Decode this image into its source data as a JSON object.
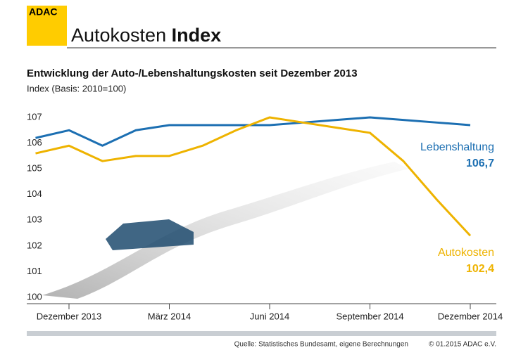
{
  "header": {
    "logo": "ADAC",
    "title": "Autokosten",
    "title_bold": "Index"
  },
  "chart_data": {
    "type": "line",
    "title": "Entwicklung der Auto-/Lebenshaltungskosten seit Dezember 2013",
    "subtitle": "Index (Basis: 2010=100)",
    "categories": [
      null,
      "Dezember 2013",
      null,
      null,
      "März 2014",
      null,
      null,
      "Juni 2014",
      null,
      null,
      "September 2014",
      null,
      null,
      "Dezember 2014"
    ],
    "series": [
      {
        "name": "Lebenshaltung",
        "color": "#1c6fb2",
        "values": [
          106.2,
          106.5,
          105.9,
          106.5,
          106.7,
          106.7,
          106.7,
          106.7,
          106.8,
          106.9,
          107.0,
          106.9,
          106.8,
          106.7
        ],
        "value_labels": [
          null,
          null,
          null,
          null,
          null,
          null,
          null,
          null,
          null,
          null,
          null,
          null,
          null,
          "106,7"
        ]
      },
      {
        "name": "Autokosten",
        "color": "#eeb300",
        "values": [
          105.6,
          105.9,
          105.3,
          105.5,
          105.5,
          105.9,
          106.5,
          107.0,
          106.8,
          106.6,
          106.4,
          105.3,
          103.8,
          102.4
        ],
        "value_labels": [
          null,
          null,
          null,
          null,
          null,
          null,
          null,
          null,
          null,
          null,
          null,
          null,
          null,
          "102,4"
        ]
      }
    ],
    "ylim": [
      100,
      107
    ],
    "yticks": [
      100,
      101,
      102,
      103,
      104,
      105,
      106,
      107
    ],
    "source": "Quelle: Statistisches Bundesamt, eigene Berechnungen",
    "copyright": "© 01.2015  ADAC e.V."
  }
}
